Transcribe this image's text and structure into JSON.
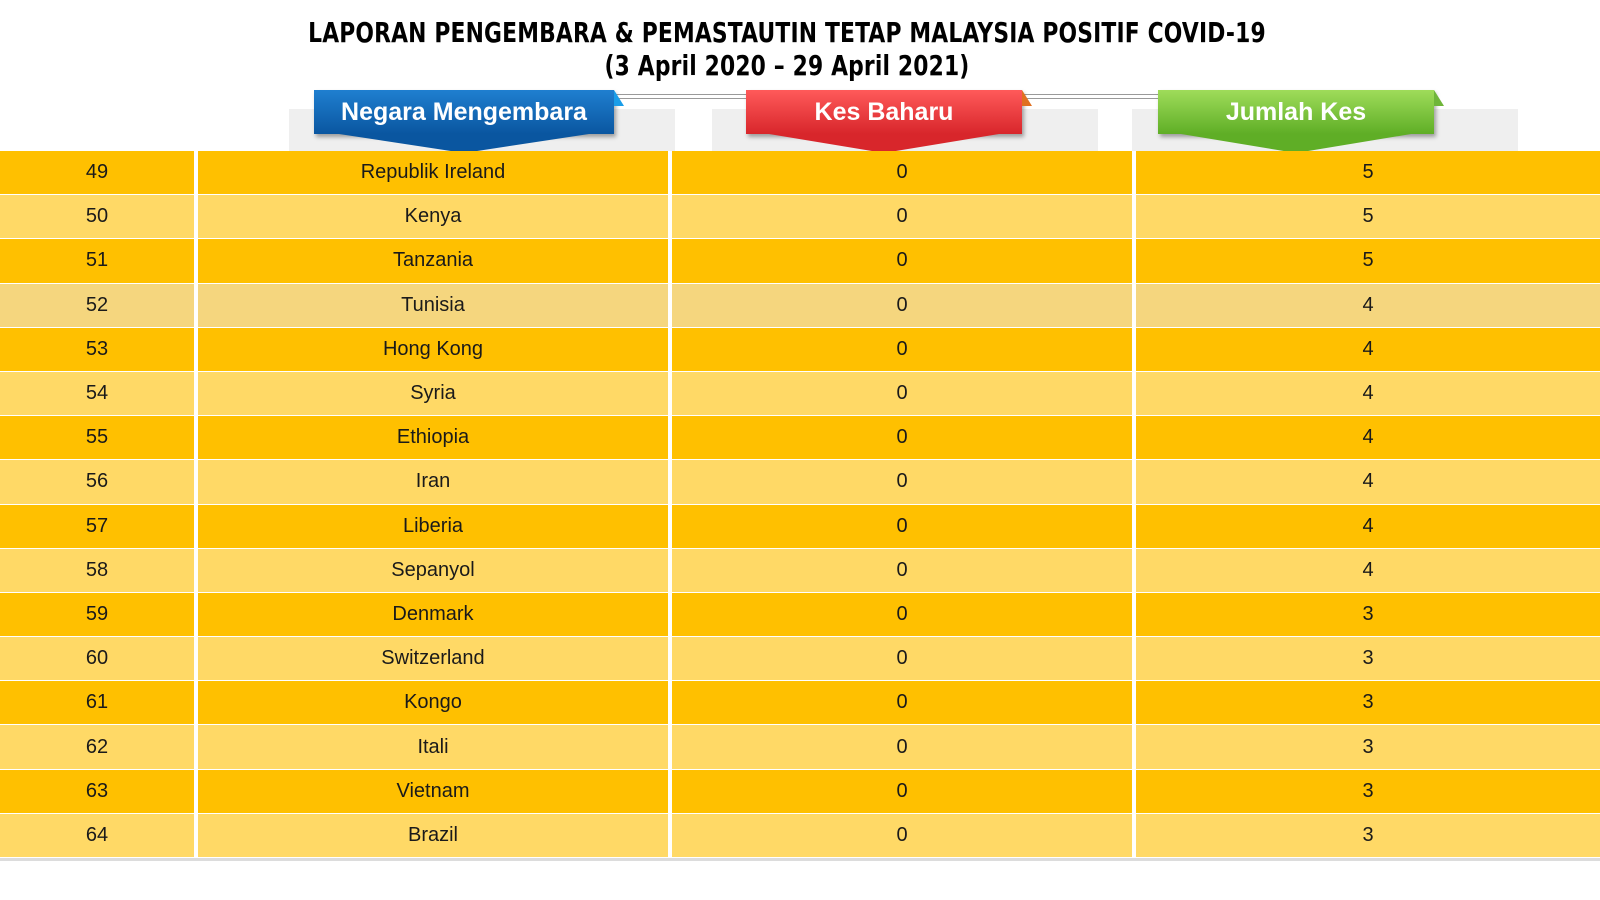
{
  "title": {
    "line1": "LAPORAN PENGEMBARA & PEMASTAUTIN TETAP MALAYSIA POSITIF COVID-19",
    "line2": "(3 April 2020 – 29 April 2021)"
  },
  "headers": {
    "country": "Negara Mengembara",
    "new_cases": "Kes Baharu",
    "total_cases": "Jumlah Kes"
  },
  "colors": {
    "row_dark": "#ffc000",
    "row_light": "#ffd966",
    "banner_blue": "#0a56a0",
    "banner_red": "#d8262b",
    "banner_green": "#5fae26"
  },
  "rows": [
    {
      "rank": "49",
      "country": "Republik Ireland",
      "new": "0",
      "total": "5"
    },
    {
      "rank": "50",
      "country": "Kenya",
      "new": "0",
      "total": "5"
    },
    {
      "rank": "51",
      "country": "Tanzania",
      "new": "0",
      "total": "5"
    },
    {
      "rank": "52",
      "country": "Tunisia",
      "new": "0",
      "total": "4"
    },
    {
      "rank": "53",
      "country": "Hong Kong",
      "new": "0",
      "total": "4"
    },
    {
      "rank": "54",
      "country": "Syria",
      "new": "0",
      "total": "4"
    },
    {
      "rank": "55",
      "country": "Ethiopia",
      "new": "0",
      "total": "4"
    },
    {
      "rank": "56",
      "country": "Iran",
      "new": "0",
      "total": "4"
    },
    {
      "rank": "57",
      "country": "Liberia",
      "new": "0",
      "total": "4"
    },
    {
      "rank": "58",
      "country": "Sepanyol",
      "new": "0",
      "total": "4"
    },
    {
      "rank": "59",
      "country": "Denmark",
      "new": "0",
      "total": "3"
    },
    {
      "rank": "60",
      "country": "Switzerland",
      "new": "0",
      "total": "3"
    },
    {
      "rank": "61",
      "country": "Kongo",
      "new": "0",
      "total": "3"
    },
    {
      "rank": "62",
      "country": "Itali",
      "new": "0",
      "total": "3"
    },
    {
      "rank": "63",
      "country": "Vietnam",
      "new": "0",
      "total": "3"
    },
    {
      "rank": "64",
      "country": "Brazil",
      "new": "0",
      "total": "3"
    }
  ]
}
